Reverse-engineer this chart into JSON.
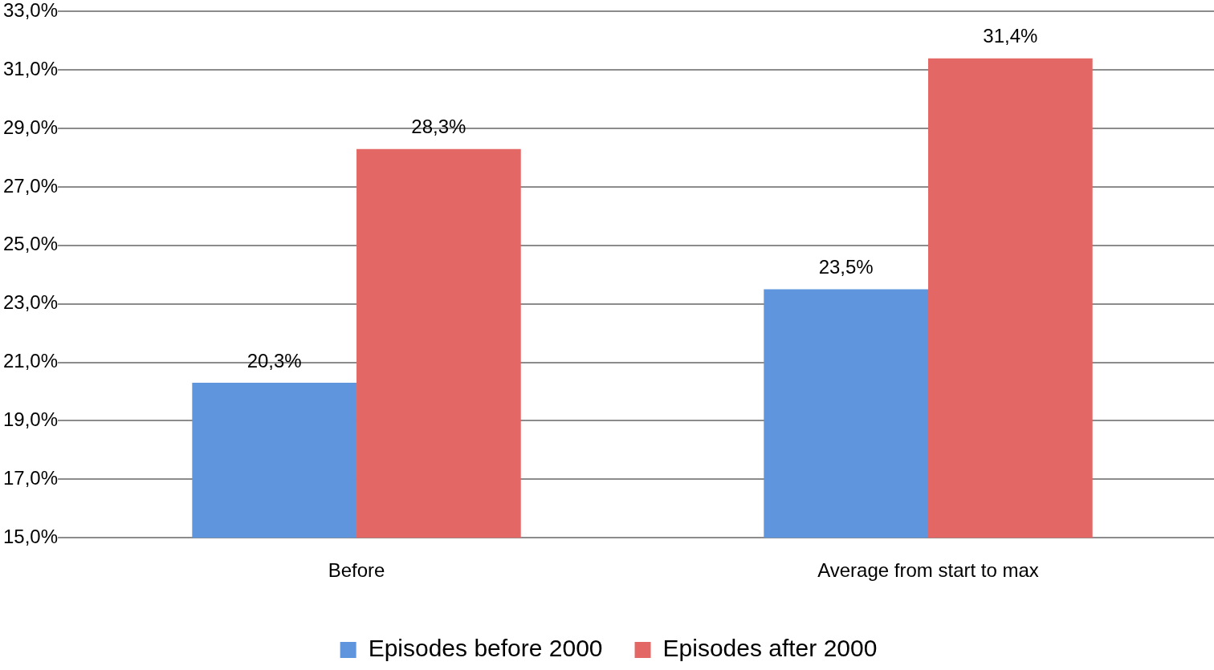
{
  "chart_data": {
    "type": "bar",
    "categories": [
      "Before",
      "Average from start to max"
    ],
    "series": [
      {
        "name": "Episodes before 2000",
        "color": "#5f95dc",
        "values": [
          20.3,
          23.5
        ],
        "value_labels": [
          "20,3%",
          "23,5%"
        ]
      },
      {
        "name": "Episodes after 2000",
        "color": "#e36764",
        "values": [
          28.3,
          31.4
        ],
        "value_labels": [
          "28,3%",
          "31,4%"
        ]
      }
    ],
    "ylim": [
      15,
      33
    ],
    "yticks": [
      {
        "value": 15,
        "label": "15,0%"
      },
      {
        "value": 17,
        "label": "17,0%"
      },
      {
        "value": 19,
        "label": "19,0%"
      },
      {
        "value": 21,
        "label": "21,0%"
      },
      {
        "value": 23,
        "label": "23,0%"
      },
      {
        "value": 25,
        "label": "25,0%"
      },
      {
        "value": 27,
        "label": "27,0%"
      },
      {
        "value": 29,
        "label": "29,0%"
      },
      {
        "value": 31,
        "label": "31,0%"
      },
      {
        "value": 33,
        "label": "33,0%"
      }
    ],
    "grid": "y",
    "legend": "bottom"
  }
}
